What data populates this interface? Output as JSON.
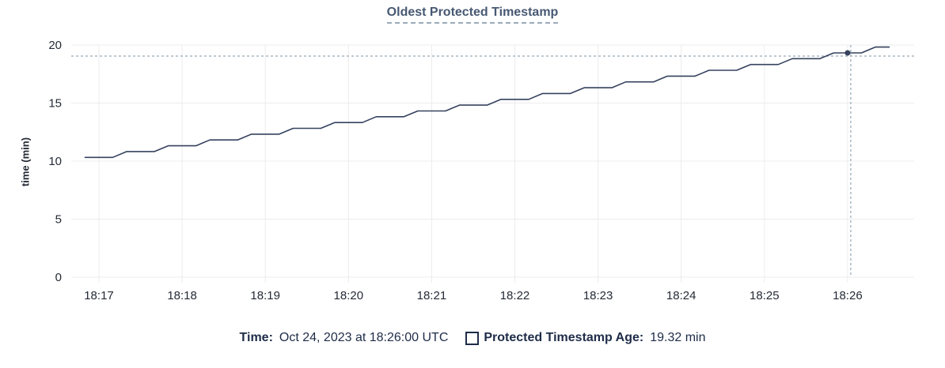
{
  "title": "Oldest Protected Timestamp",
  "y_axis_label": "time (min)",
  "footer": {
    "time_label": "Time:",
    "time_value": "Oct 24, 2023 at 18:26:00 UTC",
    "series_label": "Protected Timestamp Age:",
    "series_value": "19.32 min"
  },
  "colors": {
    "title": "#475872",
    "title_underline": "#9daabb",
    "text": "#1e2c48",
    "axis_text": "#242a35",
    "grid": "#ececec",
    "line": "#35425e",
    "crosshair": "#a8b7c2"
  },
  "chart_data": {
    "type": "line",
    "title": "Oldest Protected Timestamp",
    "xlabel": "",
    "ylabel": "time (min)",
    "ylim": [
      0,
      20
    ],
    "yticks": [
      0,
      5,
      10,
      15,
      20
    ],
    "xticks": [
      "18:17",
      "18:18",
      "18:19",
      "18:20",
      "18:21",
      "18:22",
      "18:23",
      "18:24",
      "18:25",
      "18:26"
    ],
    "x_domain": [
      "18:16:40",
      "18:26:48"
    ],
    "grid": true,
    "legend_position": "bottom",
    "hover": {
      "time": "18:26:00",
      "value": 19.32,
      "date": "Oct 24, 2023",
      "tz": "UTC"
    },
    "series": [
      {
        "name": "Protected Timestamp Age",
        "unit": "min",
        "points": [
          [
            "18:16:50",
            10.32
          ],
          [
            "18:17:00",
            10.32
          ],
          [
            "18:17:10",
            10.32
          ],
          [
            "18:17:20",
            10.82
          ],
          [
            "18:17:30",
            10.82
          ],
          [
            "18:17:40",
            10.82
          ],
          [
            "18:17:50",
            11.32
          ],
          [
            "18:18:00",
            11.32
          ],
          [
            "18:18:10",
            11.32
          ],
          [
            "18:18:20",
            11.82
          ],
          [
            "18:18:30",
            11.82
          ],
          [
            "18:18:40",
            11.82
          ],
          [
            "18:18:50",
            12.32
          ],
          [
            "18:19:00",
            12.32
          ],
          [
            "18:19:10",
            12.32
          ],
          [
            "18:19:20",
            12.82
          ],
          [
            "18:19:30",
            12.82
          ],
          [
            "18:19:40",
            12.82
          ],
          [
            "18:19:50",
            13.32
          ],
          [
            "18:20:00",
            13.32
          ],
          [
            "18:20:10",
            13.32
          ],
          [
            "18:20:20",
            13.82
          ],
          [
            "18:20:30",
            13.82
          ],
          [
            "18:20:40",
            13.82
          ],
          [
            "18:20:50",
            14.32
          ],
          [
            "18:21:00",
            14.32
          ],
          [
            "18:21:10",
            14.32
          ],
          [
            "18:21:20",
            14.82
          ],
          [
            "18:21:30",
            14.82
          ],
          [
            "18:21:40",
            14.82
          ],
          [
            "18:21:50",
            15.32
          ],
          [
            "18:22:00",
            15.32
          ],
          [
            "18:22:10",
            15.32
          ],
          [
            "18:22:20",
            15.82
          ],
          [
            "18:22:30",
            15.82
          ],
          [
            "18:22:40",
            15.82
          ],
          [
            "18:22:50",
            16.32
          ],
          [
            "18:23:00",
            16.32
          ],
          [
            "18:23:10",
            16.32
          ],
          [
            "18:23:20",
            16.82
          ],
          [
            "18:23:30",
            16.82
          ],
          [
            "18:23:40",
            16.82
          ],
          [
            "18:23:50",
            17.32
          ],
          [
            "18:24:00",
            17.32
          ],
          [
            "18:24:10",
            17.32
          ],
          [
            "18:24:20",
            17.82
          ],
          [
            "18:24:30",
            17.82
          ],
          [
            "18:24:40",
            17.82
          ],
          [
            "18:24:50",
            18.32
          ],
          [
            "18:25:00",
            18.32
          ],
          [
            "18:25:10",
            18.32
          ],
          [
            "18:25:20",
            18.82
          ],
          [
            "18:25:30",
            18.82
          ],
          [
            "18:25:40",
            18.82
          ],
          [
            "18:25:50",
            19.32
          ],
          [
            "18:26:00",
            19.32
          ],
          [
            "18:26:10",
            19.32
          ],
          [
            "18:26:20",
            19.82
          ],
          [
            "18:26:30",
            19.82
          ]
        ]
      }
    ]
  }
}
